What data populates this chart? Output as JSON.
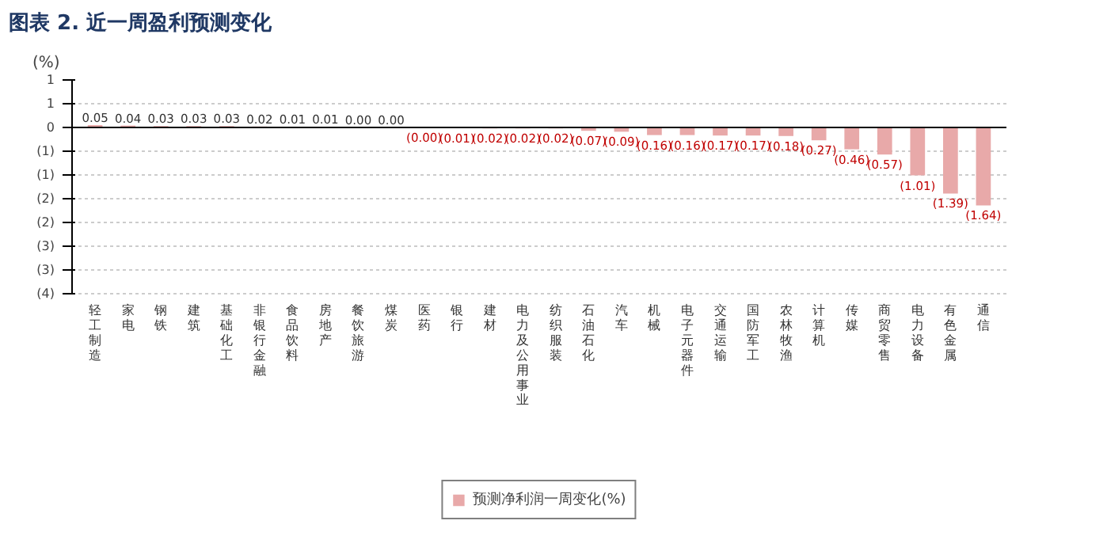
{
  "chart_data": {
    "type": "bar",
    "title": "图表 2. 近一周盈利预测变化",
    "ylabel": "(%)",
    "categories": [
      "轻工制造",
      "家电",
      "钢铁",
      "建筑",
      "基础化工",
      "非银行金融",
      "食品饮料",
      "房地产",
      "餐饮旅游",
      "煤炭",
      "医药",
      "银行",
      "建材",
      "电力及公用事业",
      "纺织服装",
      "石油石化",
      "汽车",
      "机械",
      "电子元器件",
      "交通运输",
      "国防军工",
      "农林牧渔",
      "计算机",
      "传媒",
      "商贸零售",
      "电力设备",
      "有色金属",
      "通信"
    ],
    "series": [
      {
        "name": "预测净利润一周变化(%)",
        "color": "#e8a9a9",
        "values": [
          0.05,
          0.04,
          0.03,
          0.03,
          0.03,
          0.02,
          0.01,
          0.01,
          0.0,
          0.0,
          -0.0,
          -0.01,
          -0.02,
          -0.02,
          -0.02,
          -0.07,
          -0.09,
          -0.16,
          -0.16,
          -0.17,
          -0.17,
          -0.18,
          -0.27,
          -0.46,
          -0.57,
          -1.01,
          -1.39,
          -1.64
        ],
        "value_labels": [
          "0.05",
          "0.04",
          "0.03",
          "0.03",
          "0.03",
          "0.02",
          "0.01",
          "0.01",
          "0.00",
          "0.00",
          "(0.00)",
          "(0.01)",
          "(0.02)",
          "(0.02)",
          "(0.02)",
          "(0.07)",
          "(0.09)",
          "(0.16)",
          "(0.16)",
          "(0.17)",
          "(0.17)",
          "(0.18)",
          "(0.27)",
          "(0.46)",
          "(0.57)",
          "(1.01)",
          "(1.39)",
          "(1.64)"
        ]
      }
    ],
    "ylim": [
      -3.5,
      1
    ],
    "yticks": [
      {
        "value": 1,
        "label": "1"
      },
      {
        "value": 0.5,
        "label": "1"
      },
      {
        "value": 0,
        "label": "0"
      },
      {
        "value": -0.5,
        "label": "(1)"
      },
      {
        "value": -1,
        "label": "(1)"
      },
      {
        "value": -1.5,
        "label": "(2)"
      },
      {
        "value": -2,
        "label": "(2)"
      },
      {
        "value": -2.5,
        "label": "(3)"
      },
      {
        "value": -3,
        "label": "(3)"
      },
      {
        "value": -3.5,
        "label": "(4)"
      }
    ],
    "grid": "y",
    "legend": "bottom"
  }
}
